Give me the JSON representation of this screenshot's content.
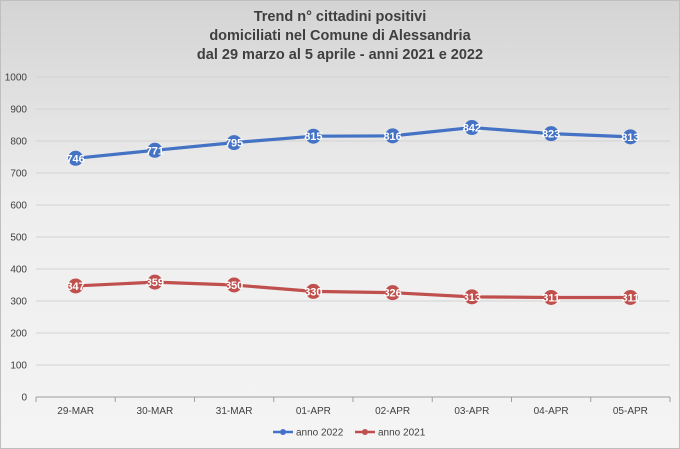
{
  "chart_data": {
    "type": "line",
    "title_lines": [
      "Trend n° cittadini positivi",
      "domiciliati nel Comune di Alessandria",
      "dal 29 marzo al 5 aprile - anni 2021 e 2022"
    ],
    "categories": [
      "29-MAR",
      "30-MAR",
      "31-MAR",
      "01-APR",
      "02-APR",
      "03-APR",
      "04-APR",
      "05-APR"
    ],
    "series": [
      {
        "name": "anno 2022",
        "color": "#4472c4",
        "values": [
          746,
          771,
          795,
          815,
          816,
          842,
          823,
          813
        ],
        "labels": [
          "746",
          "771",
          "795",
          "815",
          "816",
          "842",
          "823",
          "813"
        ]
      },
      {
        "name": "anno 2021",
        "color": "#c0504d",
        "values": [
          347,
          359,
          350,
          330,
          326,
          313,
          311,
          311
        ],
        "labels": [
          "347",
          "359",
          "350",
          "330",
          "326",
          "313",
          "311",
          "311"
        ]
      }
    ],
    "ylim": [
      0,
      1000
    ],
    "yticks": [
      0,
      100,
      200,
      300,
      400,
      500,
      600,
      700,
      800,
      900,
      1000
    ],
    "grid": true,
    "legend_position": "bottom"
  }
}
